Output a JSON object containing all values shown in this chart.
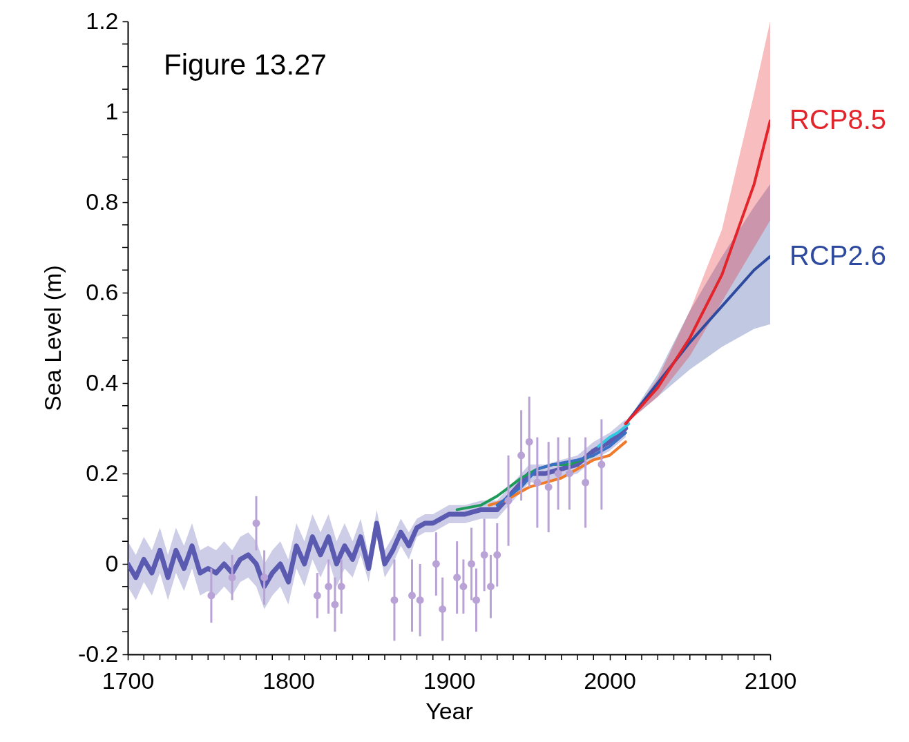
{
  "chart_data": {
    "type": "line",
    "title": "Figure 13.27",
    "xlabel": "Year",
    "ylabel": "Sea Level (m)",
    "xlim": [
      1700,
      2100
    ],
    "ylim": [
      -0.2,
      1.2
    ],
    "xticks": [
      1700,
      {
        "value": 1710,
        "label": null
      },
      {
        "value": 1720,
        "label": null
      },
      {
        "value": 1730,
        "label": null
      },
      {
        "value": 1740,
        "label": null
      },
      {
        "value": 1750,
        "label": null
      },
      {
        "value": 1760,
        "label": null
      },
      {
        "value": 1770,
        "label": null
      },
      {
        "value": 1780,
        "label": null
      },
      {
        "value": 1790,
        "label": null
      },
      1800,
      {
        "value": 1810,
        "label": null
      },
      {
        "value": 1820,
        "label": null
      },
      {
        "value": 1830,
        "label": null
      },
      {
        "value": 1840,
        "label": null
      },
      {
        "value": 1850,
        "label": null
      },
      {
        "value": 1860,
        "label": null
      },
      {
        "value": 1870,
        "label": null
      },
      {
        "value": 1880,
        "label": null
      },
      {
        "value": 1890,
        "label": null
      },
      1900,
      {
        "value": 1910,
        "label": null
      },
      {
        "value": 1920,
        "label": null
      },
      {
        "value": 1930,
        "label": null
      },
      {
        "value": 1940,
        "label": null
      },
      {
        "value": 1950,
        "label": null
      },
      {
        "value": 1960,
        "label": null
      },
      {
        "value": 1970,
        "label": null
      },
      {
        "value": 1980,
        "label": null
      },
      {
        "value": 1990,
        "label": null
      },
      2000,
      {
        "value": 2010,
        "label": null
      },
      {
        "value": 2020,
        "label": null
      },
      {
        "value": 2030,
        "label": null
      },
      {
        "value": 2040,
        "label": null
      },
      {
        "value": 2050,
        "label": null
      },
      {
        "value": 2060,
        "label": null
      },
      {
        "value": 2070,
        "label": null
      },
      {
        "value": 2080,
        "label": null
      },
      {
        "value": 2090,
        "label": null
      },
      2100
    ],
    "yticks": [
      -0.2,
      {
        "value": -0.15,
        "label": null
      },
      {
        "value": -0.1,
        "label": null
      },
      {
        "value": -0.05,
        "label": null
      },
      0,
      {
        "value": 0.05,
        "label": null
      },
      {
        "value": 0.1,
        "label": null
      },
      {
        "value": 0.15,
        "label": null
      },
      0.2,
      {
        "value": 0.25,
        "label": null
      },
      {
        "value": 0.3,
        "label": null
      },
      {
        "value": 0.35,
        "label": null
      },
      0.4,
      {
        "value": 0.45,
        "label": null
      },
      {
        "value": 0.5,
        "label": null
      },
      {
        "value": 0.55,
        "label": null
      },
      0.6,
      {
        "value": 0.65,
        "label": null
      },
      {
        "value": 0.7,
        "label": null
      },
      {
        "value": 0.75,
        "label": null
      },
      0.8,
      {
        "value": 0.85,
        "label": null
      },
      {
        "value": 0.9,
        "label": null
      },
      {
        "value": 0.95,
        "label": null
      },
      1,
      {
        "value": 1.05,
        "label": null
      },
      {
        "value": 1.1,
        "label": null
      },
      {
        "value": 1.15,
        "label": null
      },
      1.2
    ],
    "series": [
      {
        "color": "#5a5ab0",
        "x": [
          1700,
          1705,
          1710,
          1715,
          1720,
          1725,
          1730,
          1735,
          1740,
          1745,
          1750,
          1755,
          1760,
          1765,
          1770,
          1775,
          1780,
          1785,
          1790,
          1795,
          1800,
          1805,
          1810,
          1815,
          1820,
          1825,
          1830,
          1835,
          1840,
          1845,
          1850,
          1855,
          1860,
          1865,
          1870,
          1875,
          1880,
          1885,
          1890,
          1900,
          1910,
          1920,
          1930,
          1940,
          1950,
          1960,
          1970,
          1980,
          1990,
          2000,
          2010
        ],
        "values": [
          0.0,
          -0.03,
          0.01,
          -0.02,
          0.03,
          -0.03,
          0.03,
          -0.01,
          0.04,
          -0.02,
          -0.01,
          -0.02,
          0.0,
          -0.02,
          0.01,
          0.02,
          0.0,
          -0.05,
          -0.02,
          0.0,
          -0.04,
          0.04,
          0.0,
          0.06,
          0.02,
          0.06,
          0.0,
          0.04,
          0.01,
          0.06,
          -0.01,
          0.09,
          0.0,
          0.03,
          0.07,
          0.04,
          0.08,
          0.09,
          0.09,
          0.11,
          0.11,
          0.12,
          0.12,
          0.16,
          0.2,
          0.2,
          0.21,
          0.22,
          0.25,
          0.27,
          0.3
        ],
        "lower": [
          -0.05,
          -0.08,
          -0.04,
          -0.07,
          -0.02,
          -0.08,
          -0.02,
          -0.06,
          -0.01,
          -0.07,
          -0.06,
          -0.07,
          -0.05,
          -0.07,
          -0.04,
          -0.03,
          -0.05,
          -0.1,
          -0.07,
          -0.05,
          -0.09,
          -0.01,
          -0.05,
          0.01,
          -0.03,
          0.01,
          -0.05,
          -0.01,
          -0.03,
          0.02,
          -0.04,
          0.06,
          -0.03,
          0.0,
          0.04,
          0.01,
          0.06,
          0.07,
          0.07,
          0.09,
          0.09,
          0.1,
          0.1,
          0.14,
          0.18,
          0.18,
          0.19,
          0.2,
          0.23,
          0.25,
          0.28
        ],
        "upper": [
          0.05,
          0.02,
          0.06,
          0.03,
          0.08,
          0.02,
          0.08,
          0.04,
          0.09,
          0.03,
          0.04,
          0.03,
          0.05,
          0.03,
          0.06,
          0.07,
          0.05,
          0.0,
          0.03,
          0.05,
          0.01,
          0.09,
          0.05,
          0.11,
          0.07,
          0.11,
          0.05,
          0.09,
          0.05,
          0.1,
          0.02,
          0.12,
          0.03,
          0.06,
          0.1,
          0.07,
          0.1,
          0.11,
          0.11,
          0.13,
          0.13,
          0.14,
          0.14,
          0.18,
          0.22,
          0.22,
          0.23,
          0.24,
          0.27,
          0.29,
          0.32
        ]
      },
      {
        "type": "scatter",
        "marker": "circle",
        "color": "#b9a3d6",
        "x": [
          1752,
          1765,
          1780,
          1785,
          1818,
          1825,
          1829,
          1833,
          1866,
          1877,
          1882,
          1892,
          1896,
          1905,
          1909,
          1914,
          1917,
          1922,
          1926,
          1930,
          1937,
          1945,
          1950,
          1955,
          1962,
          1968,
          1975,
          1985,
          1995
        ],
        "values": [
          -0.07,
          -0.03,
          0.09,
          -0.03,
          -0.07,
          -0.05,
          -0.09,
          -0.05,
          -0.08,
          -0.07,
          -0.08,
          0.0,
          -0.1,
          -0.03,
          -0.05,
          0.0,
          -0.08,
          0.02,
          -0.05,
          0.02,
          0.14,
          0.24,
          0.27,
          0.18,
          0.17,
          0.2,
          0.2,
          0.18,
          0.22
        ],
        "errors": [
          0.06,
          0.05,
          0.06,
          0.06,
          0.05,
          0.06,
          0.06,
          0.06,
          0.09,
          0.08,
          0.08,
          0.07,
          0.07,
          0.08,
          0.06,
          0.08,
          0.07,
          0.08,
          0.07,
          0.07,
          0.1,
          0.1,
          0.1,
          0.1,
          0.1,
          0.08,
          0.08,
          0.1,
          0.1
        ]
      },
      {
        "color": "#1e9a5a",
        "x": [
          1905,
          1920,
          1930,
          1945,
          1955,
          1965,
          1975,
          1990
        ],
        "values": [
          0.12,
          0.13,
          0.15,
          0.19,
          0.21,
          0.22,
          0.22,
          0.24
        ]
      },
      {
        "color": "#f07a2a",
        "x": [
          1925,
          1935,
          1950,
          1960,
          1970,
          1980,
          1990,
          2000,
          2010
        ],
        "values": [
          0.13,
          0.14,
          0.17,
          0.18,
          0.19,
          0.21,
          0.23,
          0.24,
          0.27
        ]
      },
      {
        "color": "#3a6fc4",
        "x": [
          1930,
          1945,
          1955,
          1965,
          1980,
          1990,
          2000,
          2010
        ],
        "values": [
          0.13,
          0.17,
          0.21,
          0.22,
          0.23,
          0.24,
          0.26,
          0.29
        ]
      },
      {
        "color": "#33c8e0",
        "x": [
          1993,
          2000,
          2005,
          2012
        ],
        "values": [
          0.26,
          0.28,
          0.29,
          0.31
        ]
      },
      {
        "name": "RCP2.6",
        "color": "#2e4a9e",
        "x": [
          2010,
          2030,
          2050,
          2070,
          2090,
          2100
        ],
        "values": [
          0.31,
          0.4,
          0.49,
          0.57,
          0.65,
          0.68
        ],
        "lower": [
          0.31,
          0.37,
          0.43,
          0.48,
          0.52,
          0.53
        ],
        "upper": [
          0.31,
          0.42,
          0.56,
          0.68,
          0.79,
          0.84
        ]
      },
      {
        "name": "RCP8.5",
        "color": "#e3242b",
        "x": [
          2010,
          2030,
          2050,
          2070,
          2090,
          2100
        ],
        "values": [
          0.31,
          0.39,
          0.5,
          0.64,
          0.84,
          0.98
        ],
        "lower": [
          0.31,
          0.37,
          0.46,
          0.58,
          0.7,
          0.76
        ],
        "upper": [
          0.31,
          0.41,
          0.56,
          0.74,
          1.04,
          1.2
        ]
      }
    ]
  }
}
